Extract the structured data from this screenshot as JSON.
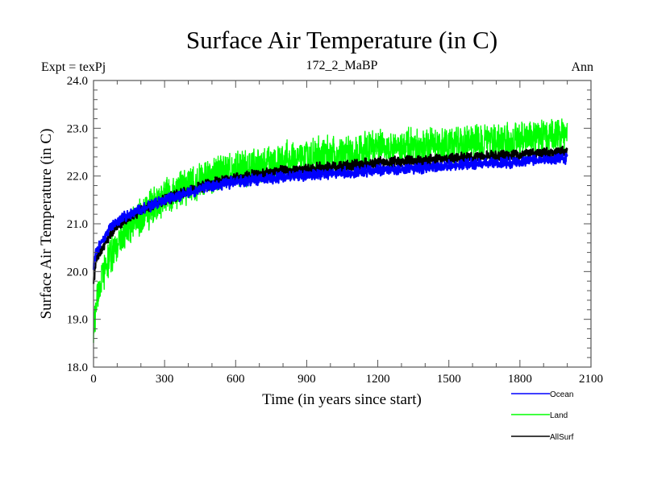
{
  "chart_data": {
    "type": "line",
    "title": "Surface Air Temperature (in C)",
    "subtitle_left": "Expt = texPj",
    "subtitle_center": "172_2_MaBP",
    "subtitle_right": "Ann",
    "xlabel": "Time (in years since start)",
    "ylabel": "Surface Air Temperature (in C)",
    "xlim": [
      0,
      2100
    ],
    "ylim": [
      18.0,
      24.0
    ],
    "x_ticks": [
      0,
      300,
      600,
      900,
      1200,
      1500,
      1800,
      2100
    ],
    "x_tick_labels": [
      "0",
      "300",
      "600",
      "900",
      "1200",
      "1500",
      "1800",
      "2100"
    ],
    "x_minor_step": 100,
    "y_ticks": [
      18.0,
      19.0,
      20.0,
      21.0,
      22.0,
      23.0,
      24.0
    ],
    "y_tick_labels": [
      "18.0",
      "19.0",
      "20.0",
      "21.0",
      "22.0",
      "23.0",
      "24.0"
    ],
    "y_minor_step": 0.2,
    "grid": false,
    "legend_position": "bottom-right-outside",
    "series": [
      {
        "name": "Ocean",
        "color": "#0000ff",
        "noise_amplitude": 0.12,
        "trend_x": [
          0,
          10,
          30,
          60,
          100,
          150,
          200,
          300,
          400,
          500,
          600,
          700,
          800,
          900,
          1000,
          1200,
          1400,
          1600,
          1800,
          2000
        ],
        "trend_y": [
          20.1,
          20.4,
          20.6,
          20.85,
          21.05,
          21.2,
          21.3,
          21.5,
          21.65,
          21.8,
          21.88,
          21.93,
          21.98,
          22.02,
          22.05,
          22.12,
          22.18,
          22.25,
          22.3,
          22.38
        ]
      },
      {
        "name": "Land",
        "color": "#00ff00",
        "noise_amplitude": 0.28,
        "trend_x": [
          0,
          10,
          30,
          60,
          100,
          150,
          200,
          300,
          400,
          500,
          600,
          700,
          800,
          900,
          1000,
          1200,
          1400,
          1600,
          1800,
          2000
        ],
        "trend_y": [
          18.7,
          19.3,
          19.8,
          20.2,
          20.55,
          20.9,
          21.15,
          21.55,
          21.8,
          22.0,
          22.15,
          22.25,
          22.32,
          22.38,
          22.45,
          22.55,
          22.62,
          22.7,
          22.75,
          22.85
        ]
      },
      {
        "name": "AllSurf",
        "color": "#000000",
        "noise_amplitude": 0.12,
        "trend_x": [
          0,
          10,
          30,
          60,
          100,
          150,
          200,
          300,
          400,
          500,
          600,
          700,
          800,
          900,
          1000,
          1200,
          1400,
          1600,
          1800,
          2000
        ],
        "trend_y": [
          19.8,
          20.2,
          20.45,
          20.7,
          20.95,
          21.15,
          21.28,
          21.5,
          21.68,
          21.85,
          21.95,
          22.03,
          22.1,
          22.15,
          22.18,
          22.27,
          22.33,
          22.4,
          22.45,
          22.5
        ]
      }
    ]
  }
}
